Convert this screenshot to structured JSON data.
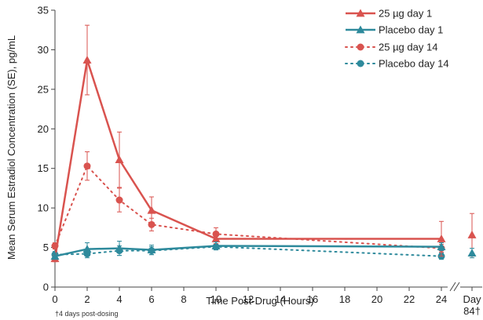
{
  "chart_data": {
    "type": "line",
    "xlabel": "Time Post-Drug (Hours)",
    "ylabel": "Mean Serum Estradiol Concentration (SE), pg/mL",
    "xlim": [
      0,
      24
    ],
    "ylim": [
      0,
      35
    ],
    "x_ticks": [
      0,
      2,
      4,
      6,
      8,
      10,
      12,
      14,
      16,
      18,
      20,
      22,
      24
    ],
    "y_ticks": [
      0,
      5,
      10,
      15,
      20,
      25,
      30,
      35
    ],
    "extra_category_label_line1": "Day",
    "extra_category_label_line2": "84†",
    "footnote": "†4 days post-dosing",
    "legend_position": "top-right",
    "grid": false,
    "series": [
      {
        "name": "25 µg day 1",
        "color": "#d9534f",
        "marker": "triangle",
        "line_style": "solid",
        "x": [
          0,
          2,
          4,
          6,
          10,
          24
        ],
        "y": [
          3.6,
          28.7,
          16.1,
          9.7,
          6.1,
          6.1
        ],
        "se": [
          0.4,
          4.4,
          3.5,
          1.7,
          0.6,
          2.2
        ],
        "day84": 6.6,
        "day84_se": 2.7
      },
      {
        "name": "Placebo day 1",
        "color": "#2e8a9c",
        "marker": "triangle",
        "line_style": "solid",
        "x": [
          0,
          2,
          4,
          6,
          10,
          24
        ],
        "y": [
          3.9,
          4.8,
          4.9,
          4.7,
          5.2,
          5.1
        ],
        "se": [
          0.4,
          0.8,
          0.9,
          0.6,
          0.5,
          0.5
        ],
        "day84": 4.3,
        "day84_se": 0.6
      },
      {
        "name": "25 µg day 14",
        "color": "#d9534f",
        "marker": "circle",
        "line_style": "dotted",
        "x": [
          0,
          2,
          4,
          6,
          10,
          24
        ],
        "y": [
          5.2,
          15.3,
          11.0,
          7.9,
          6.7,
          4.9
        ],
        "se": [
          0.4,
          1.8,
          1.5,
          0.8,
          0.8,
          0.5
        ],
        "day84": null,
        "day84_se": null
      },
      {
        "name": "Placebo day 14",
        "color": "#2e8a9c",
        "marker": "circle",
        "line_style": "dotted",
        "x": [
          0,
          2,
          4,
          6,
          10,
          24
        ],
        "y": [
          4.1,
          4.2,
          4.6,
          4.6,
          5.1,
          3.9
        ],
        "se": [
          0.4,
          0.5,
          0.6,
          0.5,
          0.4,
          0.4
        ],
        "day84": null,
        "day84_se": null
      }
    ]
  }
}
